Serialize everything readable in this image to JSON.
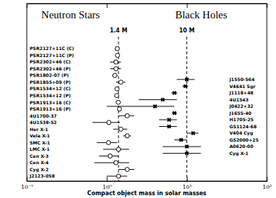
{
  "chart_data": {
    "type": "scatter",
    "orientation": "horizontal",
    "log": "x",
    "xlabel": "Compact object mass in solar masses",
    "xlim": [
      0.1,
      100
    ],
    "xticks": [
      {
        "value": 0.1,
        "label": "10⁻¹"
      },
      {
        "value": 1,
        "label": "10⁰"
      },
      {
        "value": 10,
        "label": "10¹"
      },
      {
        "value": 100,
        "label": "10²"
      }
    ],
    "reference_lines": [
      {
        "value": 1.4,
        "label": "1.4 M",
        "line_style": "dashed"
      },
      {
        "value": 10,
        "label": "10 M",
        "line_style": "dashed"
      }
    ],
    "series": [
      {
        "name": "Neutron Stars",
        "color": "#000000",
        "marker": "circle",
        "categories": [
          "PSR2127+11C (C)",
          "PSR2127+11C (P)",
          "PSR2302+46 (C)",
          "PSR2302+46 (P)",
          "PSR1802-07 (P)",
          "PSR1855+09 (P)",
          "PSR1534+12 (C)",
          "PSR1534+12 (P)",
          "PSR1913+16 (C)",
          "PSR1913+16 (P)",
          "4U1700-37",
          "4U1538-52",
          "Her X-1",
          "Vela X-1",
          "SMC X-1",
          "LMC X-1",
          "Cen X-3",
          "Cen X-4",
          "Cyg X-2",
          "J2123-058"
        ],
        "values": [
          1.35,
          1.36,
          1.3,
          1.3,
          1.26,
          1.5,
          1.34,
          1.33,
          1.39,
          1.44,
          1.8,
          1.06,
          1.5,
          1.8,
          1.05,
          1.4,
          1.1,
          1.3,
          1.8,
          1.4
        ],
        "errors": [
          0.04,
          0.04,
          0.2,
          0.2,
          0.1,
          0.2,
          0.03,
          0.03,
          0.02,
          0.02,
          0.4,
          0.4,
          0.3,
          0.2,
          0.3,
          0.5,
          0.3,
          0.6,
          0.4,
          0.4
        ]
      },
      {
        "name": "Black Holes",
        "color": "#000000",
        "marker": "cross",
        "categories": [
          "J1550-564",
          "V4641 Sgr",
          "J1118+48",
          "4U1543",
          "J0422+32",
          "J1655-40",
          "H1705-25",
          "GS1124-68",
          "V404 Cyg",
          "GS2000+25",
          "A0620-00",
          "Cyg X-1"
        ],
        "values": [
          10,
          9.6,
          7,
          5,
          4,
          7,
          6,
          6,
          12,
          8.5,
          10,
          10
        ],
        "errors": [
          2.5,
          0.8,
          0.6,
          2.5,
          3,
          0.5,
          1.5,
          1.5,
          2,
          1.5,
          5,
          5
        ]
      }
    ]
  }
}
